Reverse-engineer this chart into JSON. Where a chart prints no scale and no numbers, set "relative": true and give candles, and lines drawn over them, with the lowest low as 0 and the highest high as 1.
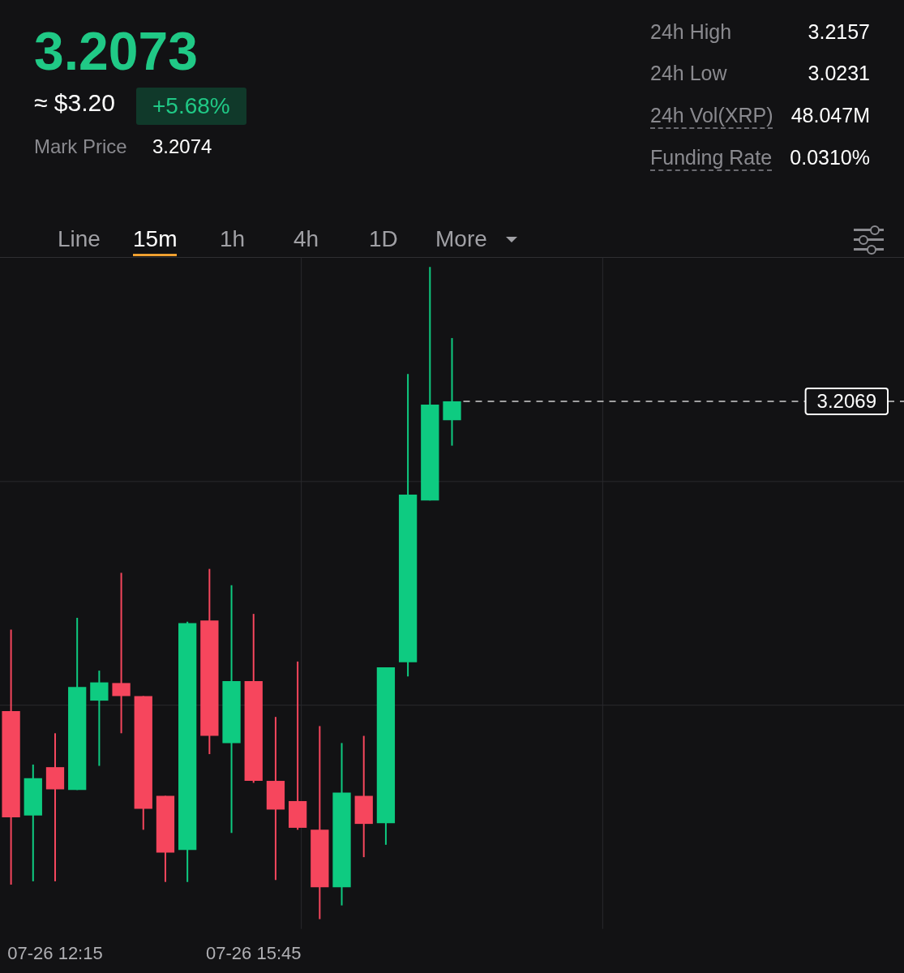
{
  "chart_data": {
    "type": "candlestick",
    "relative": true,
    "grid": true,
    "legend": false,
    "categories": [
      null,
      null,
      "07-26 12:15",
      null,
      null,
      null,
      null,
      null,
      null,
      null,
      null,
      "07-26 15:45",
      null,
      null,
      null,
      null,
      null,
      null,
      null,
      null,
      null,
      null,
      null,
      null,
      null,
      null,
      null,
      null,
      null,
      null,
      null,
      null,
      null,
      null,
      null,
      null,
      null,
      null,
      null,
      null,
      null
    ],
    "ohlc": [
      [
        0.319,
        0.444,
        0.053,
        0.156
      ],
      [
        0.159,
        0.237,
        0.058,
        0.216
      ],
      [
        0.233,
        0.285,
        0.058,
        0.199
      ],
      [
        0.198,
        0.462,
        0.198,
        0.356
      ],
      [
        0.335,
        0.381,
        0.235,
        0.363
      ],
      [
        0.362,
        0.531,
        0.285,
        0.342
      ],
      [
        0.342,
        0.342,
        0.137,
        0.169
      ],
      [
        0.189,
        0.189,
        0.057,
        0.102
      ],
      [
        0.106,
        0.456,
        0.057,
        0.454
      ],
      [
        0.458,
        0.537,
        0.253,
        0.281
      ],
      [
        0.27,
        0.512,
        0.132,
        0.365
      ],
      [
        0.365,
        0.468,
        0.209,
        0.212
      ],
      [
        0.212,
        0.31,
        0.06,
        0.168
      ],
      [
        0.181,
        0.395,
        0.137,
        0.14
      ],
      [
        0.137,
        0.296,
        0.0,
        0.049
      ],
      [
        0.049,
        0.27,
        0.021,
        0.194
      ],
      [
        0.189,
        0.281,
        0.095,
        0.146
      ],
      [
        0.147,
        0.386,
        0.114,
        0.386
      ],
      [
        0.394,
        0.836,
        0.372,
        0.651
      ],
      [
        0.642,
        1.0,
        0.642,
        0.789
      ],
      [
        0.765,
        0.891,
        0.726,
        0.794
      ],
      null,
      null,
      null,
      null,
      null,
      null,
      null,
      null,
      null,
      null,
      null,
      null,
      null,
      null,
      null,
      null,
      null,
      null,
      null,
      null
    ],
    "colors": [
      "#f6465d",
      "#0ecb81",
      "#f6465d",
      "#0ecb81",
      "#0ecb81",
      "#f6465d",
      "#f6465d",
      "#f6465d",
      "#0ecb81",
      "#f6465d",
      "#0ecb81",
      "#f6465d",
      "#f6465d",
      "#f6465d",
      "#f6465d",
      "#0ecb81",
      "#f6465d",
      "#0ecb81",
      "#0ecb81",
      "#0ecb81",
      "#0ecb81",
      null,
      null,
      null,
      null,
      null,
      null,
      null,
      null,
      null,
      null,
      null,
      null,
      null,
      null,
      null,
      null,
      null,
      null,
      null,
      null
    ],
    "ref_lines": [
      {
        "axis": "y",
        "value": 0.794,
        "line_style": "dashed",
        "color": "#cfcfcf"
      }
    ],
    "annotations": [
      "3.2073",
      "≈ $3.20",
      "+5.68%",
      "Mark Price",
      "3.2074",
      "24h High",
      "3.2157",
      "24h Low",
      "3.0231",
      "24h Vol(XRP)",
      "48.047M",
      "Funding Rate",
      "0.0310%",
      "Line",
      "15m",
      "1h",
      "4h",
      "1D",
      "More",
      "3.2069"
    ]
  }
}
